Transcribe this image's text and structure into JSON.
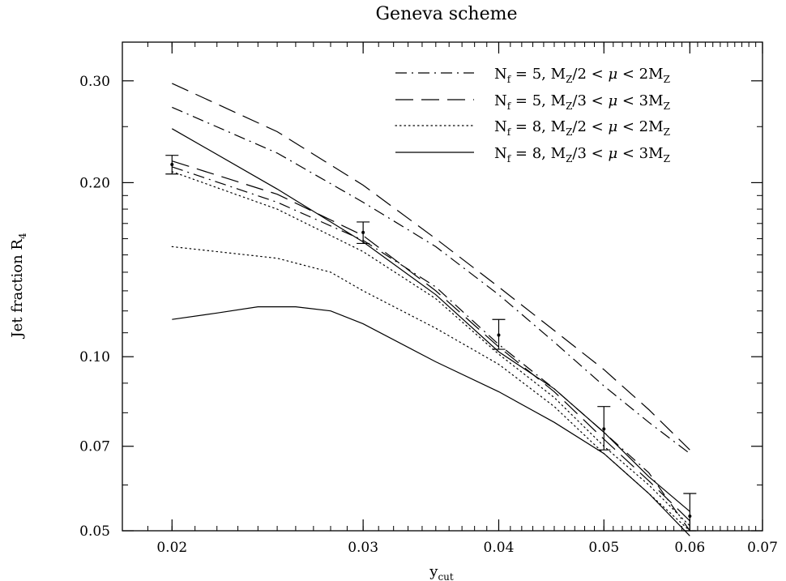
{
  "chart_data": {
    "type": "line",
    "title": "Geneva scheme",
    "xlabel": "y",
    "xlabel_sub": "cut",
    "ylabel": "Jet fraction R",
    "ylabel_sub": "4",
    "xscale": "log",
    "yscale": "log",
    "xlim": [
      0.018,
      0.07
    ],
    "ylim": [
      0.05,
      0.35
    ],
    "x_ticks": [
      0.02,
      0.03,
      0.04,
      0.05,
      0.06,
      0.07
    ],
    "x_tick_labels": [
      "0.02",
      "0.03",
      "0.04",
      "0.05",
      "0.06",
      "0.07"
    ],
    "y_ticks": [
      0.05,
      0.07,
      0.1,
      0.2,
      0.3
    ],
    "y_tick_labels": [
      "0.05",
      "0.07",
      "0.10",
      "0.20",
      "0.30"
    ],
    "legend": {
      "placement": "top-right",
      "entries": [
        {
          "style": "dash-dot",
          "N_sub": "f",
          "mz_sub": "Z",
          "text_a": "= 5,",
          "text_b": "/2 <",
          "text_c": "< 2",
          "mu": "μ",
          "N": "N",
          "M": "M"
        },
        {
          "style": "dashed",
          "N_sub": "f",
          "mz_sub": "Z",
          "text_a": "= 5,",
          "text_b": "/3 <",
          "text_c": "< 3",
          "mu": "μ",
          "N": "N",
          "M": "M"
        },
        {
          "style": "dotted",
          "N_sub": "f",
          "mz_sub": "Z",
          "text_a": "= 8,",
          "text_b": "/2 <",
          "text_c": "< 2",
          "mu": "μ",
          "N": "N",
          "M": "M"
        },
        {
          "style": "solid",
          "N_sub": "f",
          "mz_sub": "Z",
          "text_a": "= 8,",
          "text_b": "/3 <",
          "text_c": "< 3",
          "mu": "μ",
          "N": "N",
          "M": "M"
        }
      ]
    },
    "series": [
      {
        "style": "dash-dot",
        "band": "upper",
        "x": [
          0.02,
          0.025,
          0.03,
          0.035,
          0.04,
          0.045,
          0.05,
          0.055,
          0.06
        ],
        "y": [
          0.27,
          0.225,
          0.185,
          0.155,
          0.128,
          0.106,
          0.089,
          0.077,
          0.068
        ]
      },
      {
        "style": "dash-dot",
        "band": "lower",
        "x": [
          0.02,
          0.025,
          0.03,
          0.035,
          0.04,
          0.045,
          0.05,
          0.055,
          0.06
        ],
        "y": [
          0.213,
          0.185,
          0.159,
          0.132,
          0.105,
          0.088,
          0.074,
          0.063,
          0.05
        ]
      },
      {
        "style": "dashed",
        "band": "upper",
        "x": [
          0.02,
          0.025,
          0.03,
          0.035,
          0.04,
          0.045,
          0.05,
          0.055,
          0.06
        ],
        "y": [
          0.297,
          0.245,
          0.198,
          0.16,
          0.132,
          0.111,
          0.095,
          0.081,
          0.069
        ]
      },
      {
        "style": "dashed",
        "band": "lower",
        "x": [
          0.02,
          0.025,
          0.03,
          0.035,
          0.04,
          0.045,
          0.05,
          0.055,
          0.06
        ],
        "y": [
          0.218,
          0.191,
          0.162,
          0.13,
          0.104,
          0.087,
          0.072,
          0.061,
          0.052
        ]
      },
      {
        "style": "dotted",
        "band": "upper",
        "x": [
          0.02,
          0.025,
          0.03,
          0.035,
          0.04,
          0.045,
          0.05,
          0.055,
          0.06
        ],
        "y": [
          0.209,
          0.18,
          0.152,
          0.126,
          0.101,
          0.085,
          0.07,
          0.06,
          0.051
        ]
      },
      {
        "style": "dotted",
        "band": "lower",
        "x": [
          0.02,
          0.025,
          0.028,
          0.03,
          0.035,
          0.04,
          0.045,
          0.05,
          0.055,
          0.06
        ],
        "y": [
          0.155,
          0.148,
          0.14,
          0.13,
          0.112,
          0.097,
          0.082,
          0.068,
          0.058,
          0.05
        ]
      },
      {
        "style": "solid",
        "band": "upper",
        "x": [
          0.02,
          0.025,
          0.03,
          0.035,
          0.04,
          0.045,
          0.05,
          0.055,
          0.06
        ],
        "y": [
          0.248,
          0.195,
          0.158,
          0.128,
          0.102,
          0.088,
          0.074,
          0.062,
          0.054
        ]
      },
      {
        "style": "solid",
        "band": "lower",
        "x": [
          0.02,
          0.022,
          0.024,
          0.026,
          0.028,
          0.03,
          0.035,
          0.04,
          0.045,
          0.05,
          0.055,
          0.06
        ],
        "y": [
          0.116,
          0.119,
          0.122,
          0.122,
          0.12,
          0.114,
          0.098,
          0.087,
          0.077,
          0.068,
          0.058,
          0.049
        ]
      }
    ],
    "data_points": [
      {
        "x": 0.02,
        "y": 0.215,
        "err_low": 0.207,
        "err_high": 0.223
      },
      {
        "x": 0.03,
        "y": 0.164,
        "err_low": 0.157,
        "err_high": 0.171
      },
      {
        "x": 0.04,
        "y": 0.109,
        "err_low": 0.103,
        "err_high": 0.116
      },
      {
        "x": 0.05,
        "y": 0.075,
        "err_low": 0.069,
        "err_high": 0.082
      },
      {
        "x": 0.06,
        "y": 0.053,
        "err_low": 0.05,
        "err_high": 0.058
      }
    ]
  }
}
